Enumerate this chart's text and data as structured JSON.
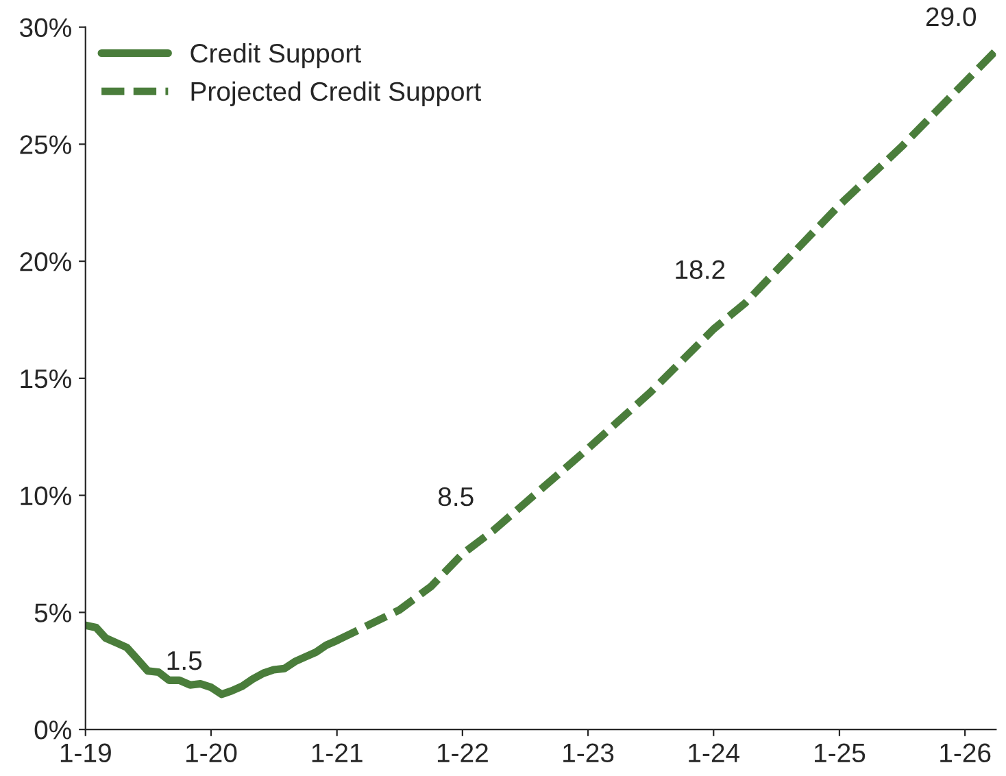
{
  "chart_data": {
    "type": "line",
    "series": [
      {
        "name": "Credit Support",
        "color": "#4a7d3b",
        "line_style": "solid",
        "x": [
          "2019-01",
          "2019-02",
          "2019-03",
          "2019-04",
          "2019-05",
          "2019-06",
          "2019-07",
          "2019-08",
          "2019-09",
          "2019-10",
          "2019-11",
          "2019-12",
          "2020-01",
          "2020-02",
          "2020-03",
          "2020-04",
          "2020-05",
          "2020-06",
          "2020-07",
          "2020-08",
          "2020-09",
          "2020-10",
          "2020-11",
          "2020-12",
          "2021-01"
        ],
        "values": [
          4.45,
          4.35,
          3.9,
          3.7,
          3.5,
          3.0,
          2.5,
          2.45,
          2.1,
          2.1,
          1.9,
          1.95,
          1.8,
          1.5,
          1.65,
          1.85,
          2.15,
          2.4,
          2.55,
          2.6,
          2.9,
          3.1,
          3.3,
          3.6,
          3.8
        ],
        "value_labels": [
          null,
          null,
          null,
          null,
          null,
          null,
          null,
          null,
          null,
          null,
          null,
          null,
          null,
          "1.5",
          null,
          null,
          null,
          null,
          null,
          null,
          null,
          null,
          null,
          null,
          null
        ]
      },
      {
        "name": "Projected Credit Support",
        "color": "#4a7d3b",
        "line_style": "dashed",
        "x": [
          "2021-01",
          "2021-07",
          "2021-10",
          "2022-01",
          "2022-04",
          "2023-01",
          "2023-07",
          "2024-01",
          "2024-04",
          "2025-01",
          "2025-07",
          "2026-04"
        ],
        "values": [
          3.8,
          5.1,
          6.1,
          7.5,
          8.5,
          12.0,
          14.4,
          17.1,
          18.2,
          22.4,
          24.9,
          29.0
        ],
        "value_labels": [
          null,
          null,
          null,
          null,
          "8.5",
          null,
          null,
          null,
          "18.2",
          null,
          null,
          "29.0"
        ]
      }
    ],
    "xlim": [
      "2019-01",
      "2026-04"
    ],
    "xticks": [
      {
        "value": "2019-01",
        "label": "1-19"
      },
      {
        "value": "2020-01",
        "label": "1-20"
      },
      {
        "value": "2021-01",
        "label": "1-21"
      },
      {
        "value": "2022-01",
        "label": "1-22"
      },
      {
        "value": "2023-01",
        "label": "1-23"
      },
      {
        "value": "2024-01",
        "label": "1-24"
      },
      {
        "value": "2025-01",
        "label": "1-25"
      },
      {
        "value": "2026-01",
        "label": "1-26"
      }
    ],
    "ylim": [
      0,
      30
    ],
    "yticks": [
      {
        "value": 0,
        "label": "0%"
      },
      {
        "value": 5,
        "label": "5%"
      },
      {
        "value": 10,
        "label": "10%"
      },
      {
        "value": 15,
        "label": "15%"
      },
      {
        "value": 20,
        "label": "20%"
      },
      {
        "value": 25,
        "label": "25%"
      },
      {
        "value": 30,
        "label": "30%"
      }
    ],
    "legend": "top left",
    "grid": false
  }
}
